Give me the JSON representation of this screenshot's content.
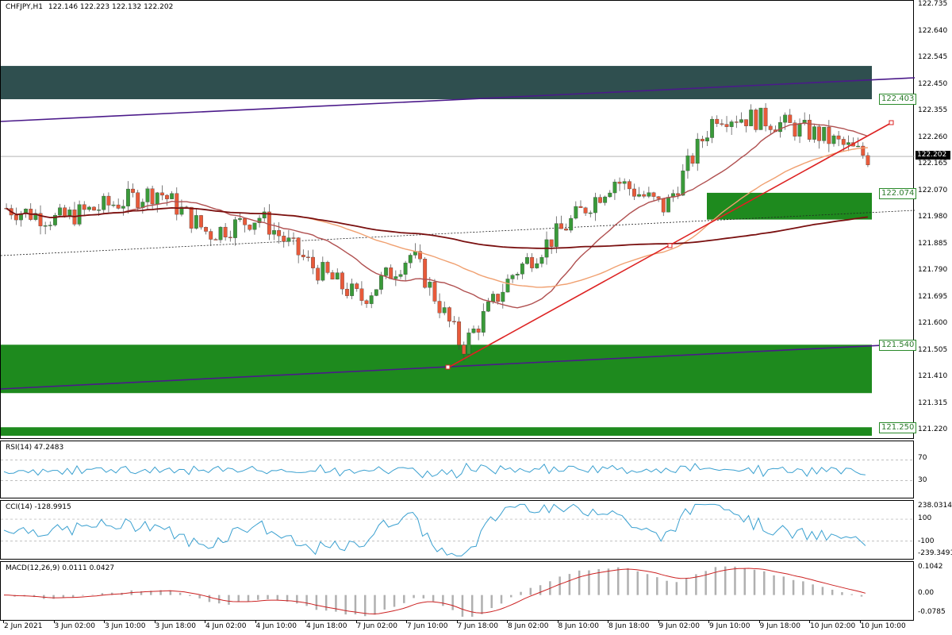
{
  "header": {
    "symbol": "CHFJPY,H1",
    "ohlc": "122.146 122.223 122.132 122.202"
  },
  "price_axis": [
    "122.735",
    "122.640",
    "122.545",
    "122.450",
    "122.355",
    "122.260",
    "122.165",
    "122.070",
    "121.980",
    "121.885",
    "121.790",
    "121.695",
    "121.600",
    "121.505",
    "121.410",
    "121.315",
    "121.220"
  ],
  "current_price": "122.202",
  "level_labels": {
    "resistance": "122.403",
    "upper_support": "122.074",
    "lower_support": "121.540",
    "bottom": "121.250"
  },
  "rsi": {
    "title": "RSI(14) 47.2483",
    "levels": [
      "70",
      "30"
    ]
  },
  "cci": {
    "title": "CCI(14) -128.9915",
    "levels": [
      "238.0314",
      "100",
      "-100",
      "-239.3491"
    ]
  },
  "macd": {
    "title": "MACD(12,26,9) 0.0111 0.0427",
    "levels": [
      "0.1042",
      "0.00",
      "-0.0785"
    ]
  },
  "time_axis": [
    "2 Jun 2021",
    "3 Jun 02:00",
    "3 Jun 10:00",
    "3 Jun 18:00",
    "4 Jun 02:00",
    "4 Jun 10:00",
    "4 Jun 18:00",
    "7 Jun 02:00",
    "7 Jun 10:00",
    "7 Jun 18:00",
    "8 Jun 02:00",
    "8 Jun 10:00",
    "8 Jun 18:00",
    "9 Jun 02:00",
    "9 Jun 10:00",
    "9 Jun 18:00",
    "10 Jun 02:00",
    "10 Jun 10:00"
  ],
  "colors": {
    "bull": "#3a9a3a",
    "bear": "#e85a3a",
    "resistance_zone": "#2f4f4f",
    "support_zone": "#1e8a1e",
    "channel": "#4b1a8a",
    "trendline": "#dd2222",
    "ma_fast": "#b05050",
    "ma_mid": "#f0a070",
    "ma_slow": "#7a1010",
    "rsi_line": "#3aa0d0",
    "macd_signal": "#cc2222",
    "macd_hist": "#b0b0b0"
  },
  "chart_data": {
    "type": "candlestick",
    "title": "CHFJPY,H1",
    "ylim": [
      121.22,
      122.735
    ],
    "last": {
      "open": 122.146,
      "high": 122.223,
      "low": 122.132,
      "close": 122.202
    },
    "x": [
      "2 Jun 2021",
      "3 Jun 02:00",
      "3 Jun 10:00",
      "3 Jun 18:00",
      "4 Jun 02:00",
      "4 Jun 10:00",
      "4 Jun 18:00",
      "7 Jun 02:00",
      "7 Jun 10:00",
      "7 Jun 18:00",
      "8 Jun 02:00",
      "8 Jun 10:00",
      "8 Jun 18:00",
      "9 Jun 02:00",
      "9 Jun 10:00",
      "9 Jun 18:00",
      "10 Jun 02:00",
      "10 Jun 10:00"
    ],
    "close_path": [
      122.02,
      121.98,
      122.03,
      122.08,
      121.93,
      121.99,
      121.82,
      121.7,
      121.86,
      121.53,
      121.79,
      121.95,
      122.12,
      122.02,
      122.35,
      122.33,
      122.28,
      122.2
    ],
    "zones": [
      {
        "label": "122.403",
        "from": 122.403,
        "to": 122.52
      },
      {
        "label": "122.074",
        "from": 121.98,
        "to": 122.074
      },
      {
        "label": "121.540",
        "from": 121.37,
        "to": 121.54
      },
      {
        "label": "121.250",
        "from": 121.22,
        "to": 121.25
      }
    ],
    "rsi_range": [
      0,
      100
    ],
    "cci_range": [
      -239.3491,
      238.0314
    ],
    "macd_range": [
      -0.0785,
      0.1042
    ]
  }
}
